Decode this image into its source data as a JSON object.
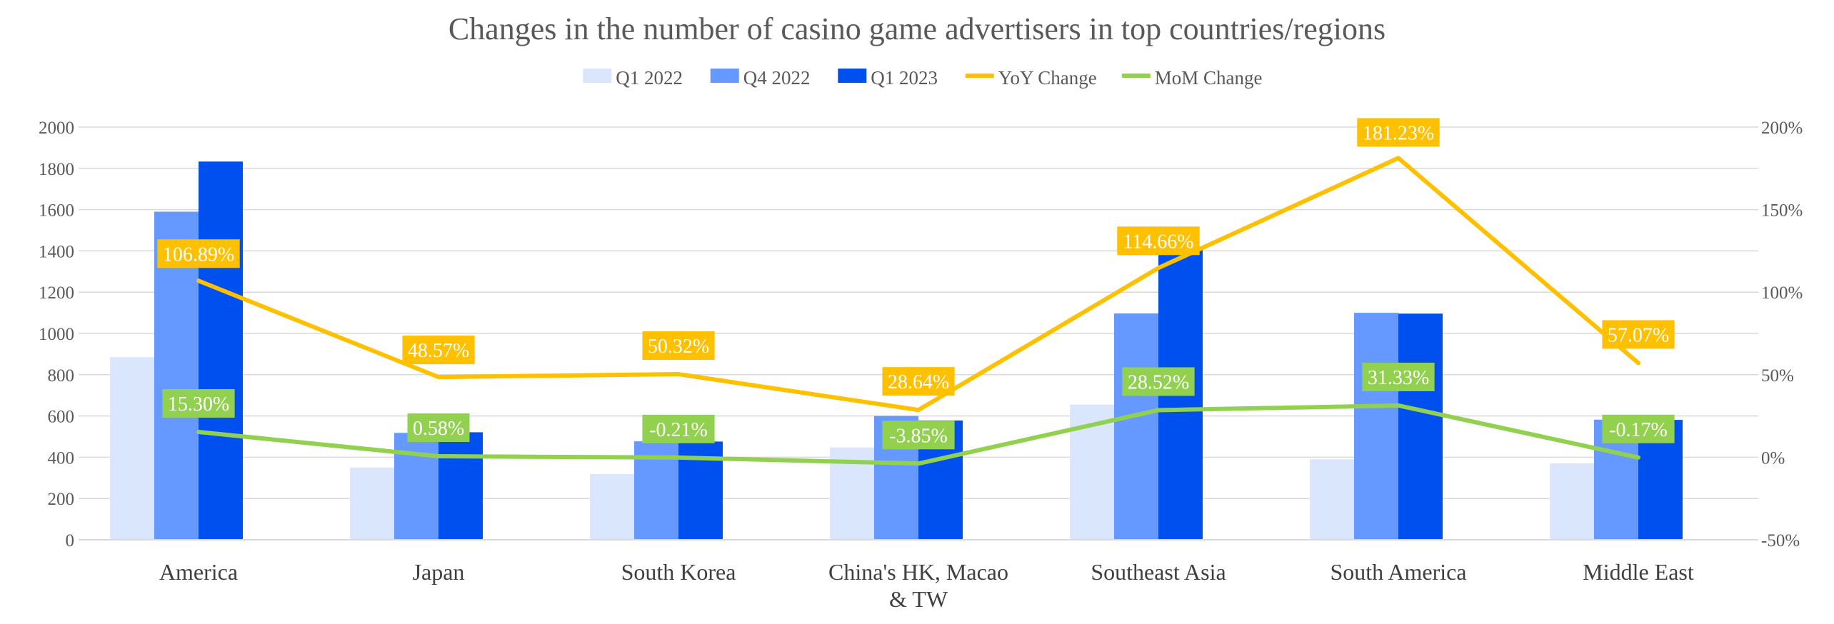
{
  "chart_data": {
    "type": "bar",
    "title": "Changes in the number of casino game advertisers in top countries/regions",
    "categories": [
      "America",
      "Japan",
      "South Korea",
      "China's HK, Macao & TW",
      "Southeast Asia",
      "South America",
      "Middle East"
    ],
    "category_lines": [
      [
        "America"
      ],
      [
        "Japan"
      ],
      [
        "South Korea"
      ],
      [
        "China's HK, Macao",
        "& TW"
      ],
      [
        "Southeast Asia"
      ],
      [
        "South America"
      ],
      [
        "Middle East"
      ]
    ],
    "series": [
      {
        "name": "Q1 2022",
        "kind": "bar",
        "axis": "left",
        "color": "#dae6fc",
        "values": [
          885,
          350,
          318,
          447,
          655,
          390,
          370
        ]
      },
      {
        "name": "Q4 2022",
        "kind": "bar",
        "axis": "left",
        "color": "#6699ff",
        "values": [
          1590,
          518,
          477,
          600,
          1097,
          1100,
          582
        ]
      },
      {
        "name": "Q1 2023",
        "kind": "bar",
        "axis": "left",
        "color": "#0050ef",
        "values": [
          1833,
          521,
          476,
          578,
          1409,
          1096,
          581
        ]
      },
      {
        "name": "YoY Change",
        "kind": "line",
        "axis": "right",
        "color": "#ffc000",
        "values": [
          106.89,
          48.57,
          50.32,
          28.64,
          114.66,
          181.23,
          57.07
        ],
        "labels": [
          "106.89%",
          "48.57%",
          "50.32%",
          "28.64%",
          "114.66%",
          "181.23%",
          "57.07%"
        ]
      },
      {
        "name": "MoM Change",
        "kind": "line",
        "axis": "right",
        "color": "#92d050",
        "values": [
          15.3,
          0.58,
          -0.21,
          -3.85,
          28.52,
          31.33,
          -0.17
        ],
        "labels": [
          "15.30%",
          "0.58%",
          "-0.21%",
          "-3.85%",
          "28.52%",
          "31.33%",
          "-0.17%"
        ]
      }
    ],
    "y_left": {
      "min": 0,
      "max": 2000,
      "step": 200,
      "ticks": [
        "0",
        "200",
        "400",
        "600",
        "800",
        "1000",
        "1200",
        "1400",
        "1600",
        "1800",
        "2000"
      ]
    },
    "y_right": {
      "min": -50,
      "max": 200,
      "step": 50,
      "ticks": [
        "-50%",
        "0%",
        "50%",
        "100%",
        "150%",
        "200%"
      ]
    },
    "grid": true,
    "legend_position": "top"
  }
}
